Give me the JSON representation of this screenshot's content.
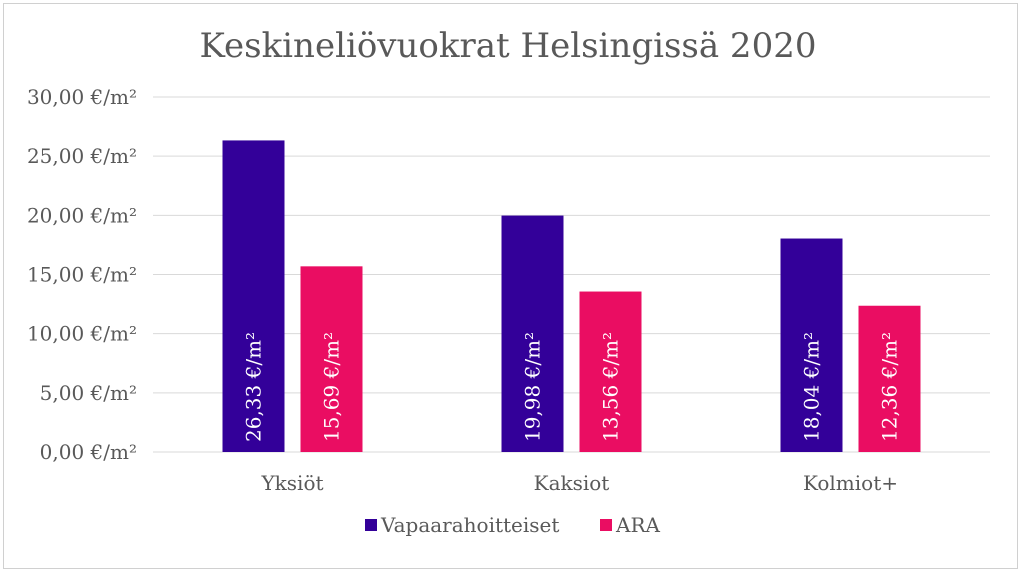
{
  "chart_data": {
    "type": "bar",
    "title": "Keskineliövuokrat Helsingissä 2020",
    "categories": [
      "Yksiöt",
      "Kaksiot",
      "Kolmiot+"
    ],
    "series": [
      {
        "name": "Vapaarahoitteiset",
        "color": "#330099",
        "values": [
          26.33,
          19.98,
          18.04
        ],
        "labels": [
          "26,33 €/m²",
          "19,98 €/m²",
          "18,04 €/m²"
        ]
      },
      {
        "name": "ARA",
        "color": "#EA0D62",
        "values": [
          15.69,
          13.56,
          12.36
        ],
        "labels": [
          "15,69 €/m²",
          "13,56 €/m²",
          "12,36 €/m²"
        ]
      }
    ],
    "yticks": [
      0,
      5,
      10,
      15,
      20,
      25,
      30
    ],
    "ytick_labels": [
      "0,00 €/m²",
      "5,00 €/m²",
      "10,00 €/m²",
      "15,00 €/m²",
      "20,00 €/m²",
      "25,00 €/m²",
      "30,00 €/m²"
    ],
    "ylim": [
      0,
      30
    ],
    "grid": true,
    "legend_position": "bottom",
    "xlabel": "",
    "ylabel": ""
  }
}
